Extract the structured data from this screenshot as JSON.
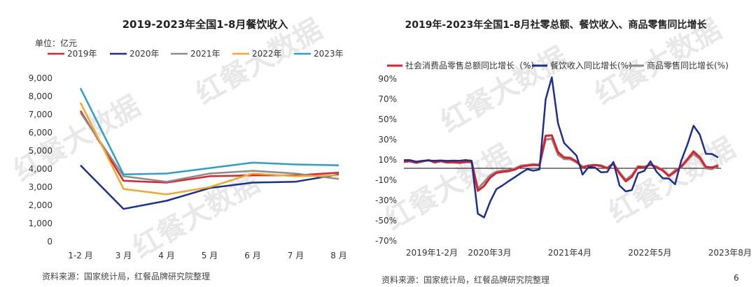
{
  "page_number": "6",
  "watermark": {
    "text": "红餐大数据",
    "color": "#e6e6e6"
  },
  "chart_data": [
    {
      "type": "line",
      "title": "2019-2023年全国1-8月餐饮收入",
      "unit_label": "单位：亿元",
      "source": "资料来源：国家统计局，红餐品牌研究院整理",
      "categories": [
        "1-2 月",
        "3 月",
        "4 月",
        "5 月",
        "6 月",
        "7 月",
        "8 月"
      ],
      "ylim": [
        0,
        9000
      ],
      "yticks": [
        "9,000",
        "8,000",
        "7,000",
        "6,000",
        "5,000",
        "4,000",
        "3,000",
        "2,000",
        "1,000",
        "0"
      ],
      "series": [
        {
          "name": "2019年",
          "color": "#e0202a",
          "values": [
            7200,
            3350,
            3250,
            3600,
            3650,
            3650,
            3800
          ]
        },
        {
          "name": "2020年",
          "color": "#1b2f8f",
          "values": [
            4200,
            1800,
            2250,
            2950,
            3250,
            3300,
            3700
          ]
        },
        {
          "name": "2021年",
          "color": "#8c8c8c",
          "values": [
            7100,
            3600,
            3300,
            3750,
            3900,
            3750,
            3450
          ]
        },
        {
          "name": "2022年",
          "color": "#f0a92a",
          "values": [
            7650,
            2900,
            2600,
            3000,
            3750,
            3600,
            3650
          ]
        },
        {
          "name": "2023年",
          "color": "#2f9ec9",
          "values": [
            8450,
            3700,
            3750,
            4050,
            4350,
            4250,
            4200
          ]
        }
      ]
    },
    {
      "type": "line",
      "title": "2019年-2023年全国1-8月社零总额、餐饮收入、商品零售同比增长",
      "source": "资料来源：国家统计局，红餐品牌研究院整理",
      "ylim": [
        -75,
        95
      ],
      "yticks": [
        "90%",
        "70%",
        "50%",
        "30%",
        "10%",
        "-10%",
        "-30%",
        "-50%",
        "-70%"
      ],
      "ytick_values": [
        90,
        70,
        50,
        30,
        10,
        -10,
        -30,
        -50,
        -70
      ],
      "xtick_labels": [
        "2019年1-2月",
        "2020年3月",
        "2021年4月",
        "2022年5月",
        "2023年8月"
      ],
      "xtick_index": [
        0,
        13,
        26,
        39,
        52
      ],
      "series": [
        {
          "name": "社会消费品零售总额同比增长（%）",
          "color": "#e0202a",
          "values": [
            8.2,
            8.7,
            7.2,
            8.6,
            9.8,
            7.6,
            8.8,
            7.5,
            7.8,
            7.2,
            8.0,
            8.0,
            -20.5,
            -15.8,
            -7.5,
            -2.8,
            -1.8,
            -1.1,
            0.5,
            3.3,
            4.3,
            5.0,
            4.6,
            33.8,
            34.2,
            17.7,
            12.4,
            12.1,
            8.5,
            2.5,
            4.4,
            4.9,
            3.9,
            1.7,
            6.7,
            -3.5,
            -11.1,
            -6.7,
            3.1,
            2.7,
            5.4,
            2.5,
            -0.5,
            -5.9,
            -1.8,
            3.5,
            10.6,
            18.4,
            12.7,
            3.1,
            2.5,
            4.6
          ]
        },
        {
          "name": "餐饮收入同比增长(%)",
          "color": "#1b2f8f",
          "values": [
            9.7,
            9.8,
            8.3,
            9.2,
            9.4,
            9.1,
            9.5,
            9.0,
            9.3,
            9.1,
            9.8,
            9.2,
            -43.1,
            -46.8,
            -31.1,
            -18.9,
            -15.2,
            -11.0,
            -7.0,
            -2.9,
            0.8,
            -0.6,
            0.6,
            69.8,
            91.6,
            46.4,
            26.6,
            20.5,
            14.3,
            -4.5,
            3.1,
            2.5,
            -2.2,
            -1.9,
            8.0,
            -15.4,
            -21.1,
            -19.7,
            -3.2,
            -0.8,
            8.6,
            -1.7,
            -8.1,
            -8.4,
            -14.1,
            9.2,
            25.1,
            43.8,
            35.1,
            16.1,
            15.8,
            12.4
          ]
        },
        {
          "name": "商品零售同比增长(%)",
          "color": "#8c8c8c",
          "values": [
            8.0,
            8.6,
            7.1,
            8.5,
            9.8,
            7.5,
            8.7,
            7.4,
            7.6,
            7.2,
            7.8,
            7.9,
            -18.2,
            -12.0,
            -5.1,
            -1.7,
            -0.6,
            0.0,
            1.5,
            4.4,
            4.9,
            5.8,
            5.2,
            30.0,
            31.0,
            15.2,
            10.9,
            10.7,
            7.5,
            3.0,
            4.4,
            4.9,
            4.6,
            2.1,
            6.0,
            -2.3,
            -9.7,
            -5.0,
            3.7,
            3.2,
            5.2,
            3.4,
            0.1,
            -5.6,
            -0.1,
            2.6,
            9.6,
            15.9,
            11.0,
            1.7,
            1.0,
            3.7
          ]
        }
      ]
    }
  ]
}
